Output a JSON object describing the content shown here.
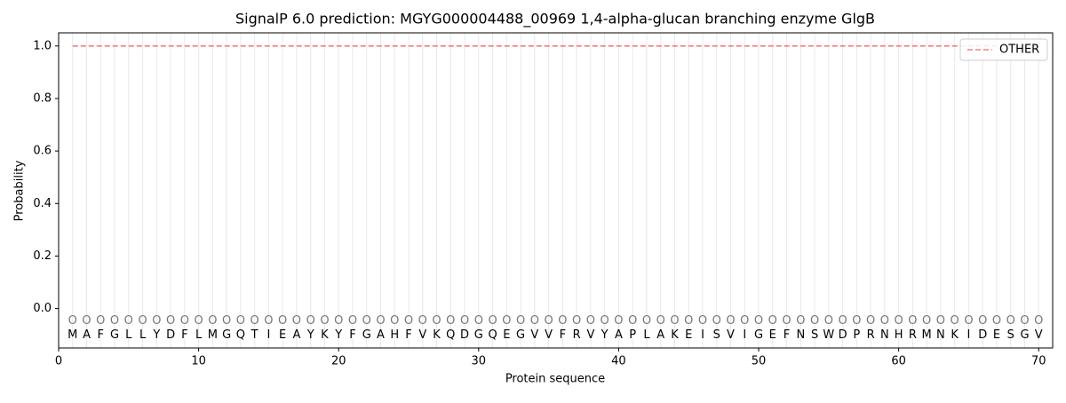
{
  "chart_data": {
    "type": "line",
    "title": "SignalP 6.0 prediction: MGYG000004488_00969 1,4-alpha-glucan branching enzyme GlgB",
    "xlabel": "Protein sequence",
    "ylabel": "Probability",
    "x": [
      1,
      2,
      3,
      4,
      5,
      6,
      7,
      8,
      9,
      10,
      11,
      12,
      13,
      14,
      15,
      16,
      17,
      18,
      19,
      20,
      21,
      22,
      23,
      24,
      25,
      26,
      27,
      28,
      29,
      30,
      31,
      32,
      33,
      34,
      35,
      36,
      37,
      38,
      39,
      40,
      41,
      42,
      43,
      44,
      45,
      46,
      47,
      48,
      49,
      50,
      51,
      52,
      53,
      54,
      55,
      56,
      57,
      58,
      59,
      60,
      61,
      62,
      63,
      64,
      65,
      66,
      67,
      68,
      69,
      70
    ],
    "sequence": [
      "M",
      "A",
      "F",
      "G",
      "L",
      "L",
      "Y",
      "D",
      "F",
      "L",
      "M",
      "G",
      "Q",
      "T",
      "I",
      "E",
      "A",
      "Y",
      "K",
      "Y",
      "F",
      "G",
      "A",
      "H",
      "F",
      "V",
      "K",
      "Q",
      "D",
      "G",
      "Q",
      "E",
      "G",
      "V",
      "V",
      "F",
      "R",
      "V",
      "Y",
      "A",
      "P",
      "L",
      "A",
      "K",
      "E",
      "I",
      "S",
      "V",
      "I",
      "G",
      "E",
      "F",
      "N",
      "S",
      "W",
      "D",
      "P",
      "R",
      "N",
      "H",
      "R",
      "M",
      "N",
      "K",
      "I",
      "D",
      "E",
      "S",
      "G",
      "V"
    ],
    "region_labels": [
      "O",
      "O",
      "O",
      "O",
      "O",
      "O",
      "O",
      "O",
      "O",
      "O",
      "O",
      "O",
      "O",
      "O",
      "O",
      "O",
      "O",
      "O",
      "O",
      "O",
      "O",
      "O",
      "O",
      "O",
      "O",
      "O",
      "O",
      "O",
      "O",
      "O",
      "O",
      "O",
      "O",
      "O",
      "O",
      "O",
      "O",
      "O",
      "O",
      "O",
      "O",
      "O",
      "O",
      "O",
      "O",
      "O",
      "O",
      "O",
      "O",
      "O",
      "O",
      "O",
      "O",
      "O",
      "O",
      "O",
      "O",
      "O",
      "O",
      "O",
      "O",
      "O",
      "O",
      "O",
      "O",
      "O",
      "O",
      "O",
      "O",
      "O"
    ],
    "series": [
      {
        "name": "OTHER",
        "color": "#f08080",
        "dashed": true,
        "values": [
          1,
          1,
          1,
          1,
          1,
          1,
          1,
          1,
          1,
          1,
          1,
          1,
          1,
          1,
          1,
          1,
          1,
          1,
          1,
          1,
          1,
          1,
          1,
          1,
          1,
          1,
          1,
          1,
          1,
          1,
          1,
          1,
          1,
          1,
          1,
          1,
          1,
          1,
          1,
          1,
          1,
          1,
          1,
          1,
          1,
          1,
          1,
          1,
          1,
          1,
          1,
          1,
          1,
          1,
          1,
          1,
          1,
          1,
          1,
          1,
          1,
          1,
          1,
          1,
          1,
          1,
          1,
          1,
          1,
          1
        ]
      }
    ],
    "xlim": [
      0,
      71
    ],
    "ylim": [
      -0.15,
      1.05
    ],
    "xticks": [
      0,
      10,
      20,
      30,
      40,
      50,
      60,
      70
    ],
    "yticks": [
      {
        "value": 0,
        "label": "0.0"
      },
      {
        "value": 0.2,
        "label": "0.2"
      },
      {
        "value": 0.4,
        "label": "0.4"
      },
      {
        "value": 0.6,
        "label": "0.6"
      },
      {
        "value": 0.8,
        "label": "0.8"
      },
      {
        "value": 1,
        "label": "1.0"
      }
    ],
    "legend": "upper right"
  }
}
